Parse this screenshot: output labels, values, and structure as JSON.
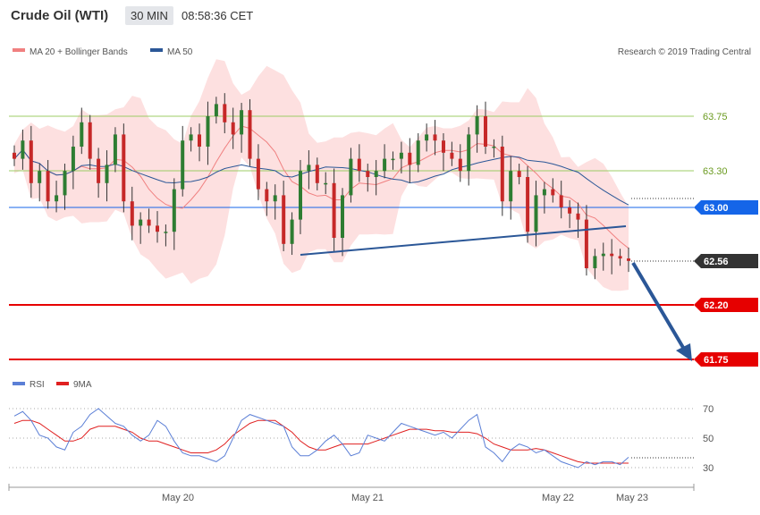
{
  "header": {
    "title": "Crude Oil (WTI)",
    "timeframe": "30 MIN",
    "time": "08:58:36 CET"
  },
  "legend": {
    "ma20_bb": {
      "label": "MA 20 + Bollinger Bands",
      "color": "#f08080"
    },
    "ma50": {
      "label": "MA 50",
      "color": "#2b5797"
    },
    "source": "Research © 2019 Trading Central"
  },
  "rsi_legend": {
    "rsi": {
      "label": "RSI",
      "color": "#5b7fd6"
    },
    "ma9": {
      "label": "9MA",
      "color": "#e02020"
    }
  },
  "levels": {
    "resistance_high": "63.75",
    "resistance_low": "63.30",
    "pivot": "63.00",
    "last_price": "62.56",
    "support_1": "62.20",
    "support_2": "61.75"
  },
  "rsi_ticks": [
    "70",
    "50",
    "30"
  ],
  "x_ticks": [
    "May 20",
    "May 21",
    "May 22",
    "May 23"
  ],
  "colors": {
    "pivot": "#1565e8",
    "support": "#e60000",
    "last": "#333333",
    "up": "#2e7d32",
    "down": "#c62828",
    "band": "#fde0e0",
    "trendline": "#2b5797",
    "green_level": "#9ccc65"
  },
  "chart_data": {
    "type": "candlestick",
    "title": "Crude Oil (WTI)",
    "ylim": [
      61.6,
      64.1
    ],
    "x_ticks": [
      "May 20",
      "May 21",
      "May 22",
      "May 23"
    ],
    "horizontal_levels": [
      63.75,
      63.3,
      63.0,
      62.56,
      62.2,
      61.75
    ],
    "close_path": [
      63.4,
      63.55,
      63.2,
      63.3,
      63.05,
      63.1,
      63.3,
      63.5,
      63.7,
      63.4,
      63.2,
      63.35,
      63.6,
      63.05,
      62.85,
      62.9,
      62.85,
      62.8,
      62.8,
      63.15,
      63.55,
      63.6,
      63.5,
      63.75,
      63.85,
      63.7,
      63.6,
      63.8,
      63.4,
      63.15,
      63.05,
      63.1,
      62.7,
      62.9,
      63.3,
      63.35,
      63.2,
      63.2,
      62.75,
      63.1,
      63.4,
      63.3,
      63.25,
      63.3,
      63.4,
      63.4,
      63.45,
      63.35,
      63.55,
      63.6,
      63.55,
      63.45,
      63.4,
      63.3,
      63.6,
      63.75,
      63.5,
      63.5,
      63.05,
      63.3,
      63.25,
      62.8,
      63.1,
      63.15,
      63.1,
      63.0,
      62.95,
      62.9,
      62.5,
      62.6,
      62.62,
      62.6,
      62.58,
      62.56
    ],
    "rsi": {
      "ylim": [
        20,
        80
      ],
      "ticks": [
        70,
        50,
        30
      ],
      "rsi_values": [
        65,
        68,
        62,
        52,
        50,
        44,
        42,
        54,
        58,
        66,
        70,
        65,
        60,
        58,
        52,
        48,
        52,
        62,
        58,
        48,
        40,
        38,
        38,
        36,
        34,
        38,
        50,
        62,
        66,
        64,
        62,
        60,
        58,
        44,
        38,
        38,
        42,
        48,
        52,
        46,
        38,
        40,
        52,
        50,
        48,
        54,
        60,
        58,
        56,
        54,
        52,
        54,
        50,
        56,
        62,
        66,
        44,
        40,
        34,
        42,
        46,
        44,
        40,
        42,
        38,
        34,
        32,
        30,
        34,
        32,
        34,
        34,
        32,
        37
      ],
      "ma9_values": [
        60,
        62,
        62,
        60,
        56,
        52,
        48,
        48,
        50,
        56,
        58,
        58,
        58,
        56,
        54,
        50,
        48,
        48,
        46,
        44,
        42,
        40,
        40,
        40,
        42,
        46,
        52,
        56,
        60,
        62,
        62,
        62,
        58,
        54,
        48,
        44,
        42,
        42,
        44,
        46,
        46,
        46,
        46,
        48,
        50,
        52,
        54,
        56,
        56,
        56,
        55,
        55,
        54,
        54,
        54,
        53,
        50,
        46,
        44,
        42,
        42,
        42,
        43,
        42,
        40,
        38,
        36,
        34,
        33,
        33,
        33,
        33,
        33,
        33
      ]
    }
  }
}
